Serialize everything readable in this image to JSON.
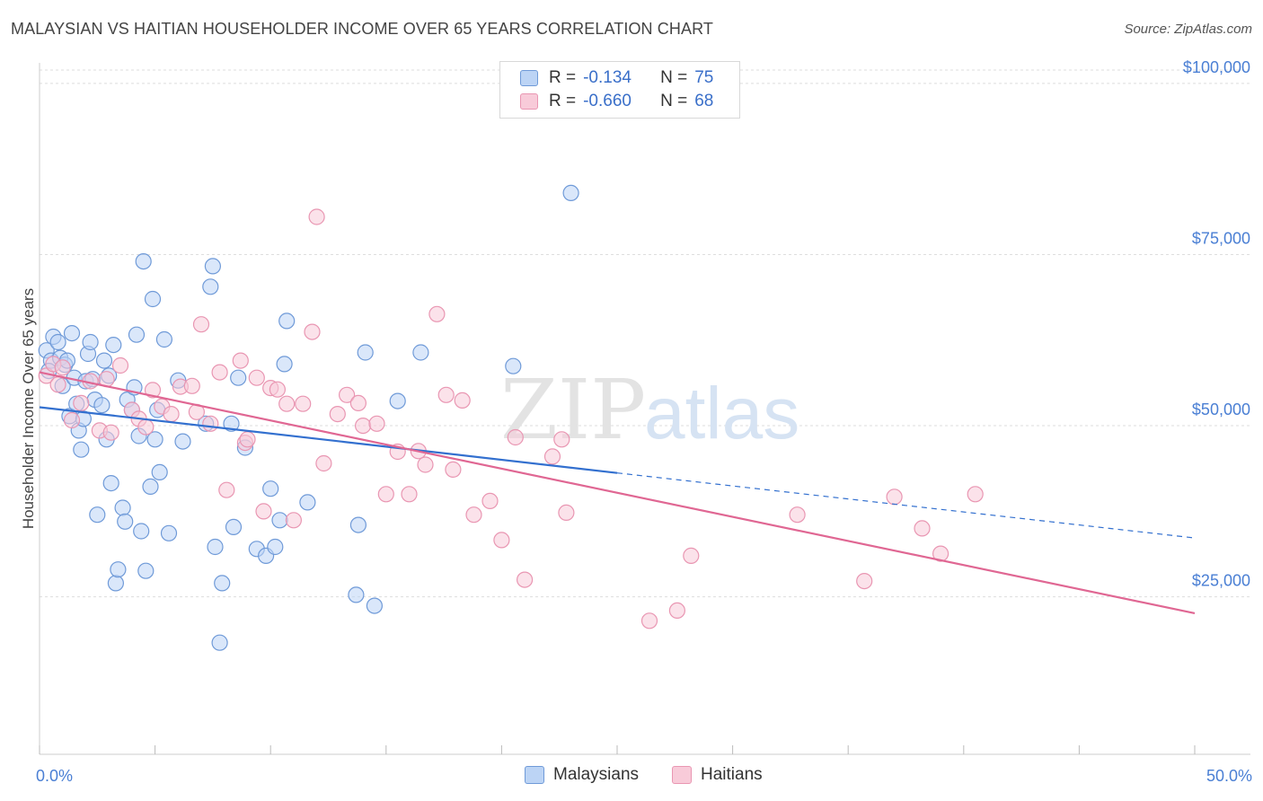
{
  "title": "MALAYSIAN VS HAITIAN HOUSEHOLDER INCOME OVER 65 YEARS CORRELATION CHART",
  "source": "Source: ZipAtlas.com",
  "watermark": {
    "part1": "ZIP",
    "part2": "atlas"
  },
  "legend": {
    "rows": [
      {
        "r_label": "R =",
        "r_value": "-0.134",
        "n_label": "N =",
        "n_value": "75"
      },
      {
        "r_label": "R =",
        "r_value": "-0.660",
        "n_label": "N =",
        "n_value": "68"
      }
    ]
  },
  "colors": {
    "malaysians_fill": "#bcd4f5",
    "malaysians_stroke": "#6f9ad8",
    "malaysians_line": "#3370cf",
    "haitians_fill": "#f8cbd9",
    "haitians_stroke": "#e996b2",
    "haitians_line": "#e06793",
    "axis_label": "#4a7fd4"
  },
  "chart_data": {
    "type": "scatter",
    "title": "MALAYSIAN VS HAITIAN HOUSEHOLDER INCOME OVER 65 YEARS CORRELATION CHART",
    "xlabel": "",
    "ylabel": "Householder Income Over 65 years",
    "xlim": [
      0,
      50
    ],
    "ylim": [
      2000,
      103000
    ],
    "x_tick_labels": [
      "0.0%",
      "50.0%"
    ],
    "y_ticks": [
      {
        "value": 25000,
        "label": "$25,000"
      },
      {
        "value": 50000,
        "label": "$50,000"
      },
      {
        "value": 75000,
        "label": "$75,000"
      },
      {
        "value": 100000,
        "label": "$100,000"
      }
    ],
    "grid": true,
    "series": [
      {
        "name": "Malaysians",
        "r": -0.134,
        "n": 75,
        "trend": {
          "x0": 0,
          "y0": 52700,
          "x1": 25,
          "y1": 43100,
          "dash_x1": 50,
          "dash_y1": 33600
        },
        "points": [
          [
            0.3,
            61.0
          ],
          [
            0.5,
            59.5
          ],
          [
            0.4,
            58.0
          ],
          [
            0.6,
            63.0
          ],
          [
            0.8,
            62.2
          ],
          [
            0.9,
            59.9
          ],
          [
            1.0,
            55.8
          ],
          [
            1.1,
            58.9
          ],
          [
            1.2,
            59.5
          ],
          [
            1.3,
            51.4
          ],
          [
            1.4,
            63.5
          ],
          [
            1.5,
            57.0
          ],
          [
            1.6,
            53.2
          ],
          [
            1.7,
            49.3
          ],
          [
            1.9,
            51.0
          ],
          [
            2.0,
            56.5
          ],
          [
            2.1,
            60.5
          ],
          [
            2.2,
            62.2
          ],
          [
            2.3,
            56.8
          ],
          [
            2.4,
            53.8
          ],
          [
            2.5,
            37.0
          ],
          [
            2.7,
            53.0
          ],
          [
            2.8,
            59.5
          ],
          [
            2.9,
            48.0
          ],
          [
            3.0,
            57.3
          ],
          [
            3.1,
            41.6
          ],
          [
            3.2,
            61.8
          ],
          [
            3.3,
            27.0
          ],
          [
            3.4,
            29.0
          ],
          [
            3.6,
            38.0
          ],
          [
            3.7,
            36.0
          ],
          [
            3.8,
            53.8
          ],
          [
            4.0,
            52.3
          ],
          [
            4.1,
            55.6
          ],
          [
            4.2,
            63.3
          ],
          [
            4.4,
            34.6
          ],
          [
            4.5,
            74.0
          ],
          [
            4.6,
            28.8
          ],
          [
            4.8,
            41.1
          ],
          [
            4.9,
            68.5
          ],
          [
            5.0,
            48.0
          ],
          [
            5.1,
            52.3
          ],
          [
            5.2,
            43.2
          ],
          [
            5.4,
            62.6
          ],
          [
            5.6,
            34.3
          ],
          [
            6.0,
            56.6
          ],
          [
            6.2,
            47.7
          ],
          [
            7.2,
            50.3
          ],
          [
            7.4,
            70.3
          ],
          [
            7.5,
            73.3
          ],
          [
            7.6,
            32.3
          ],
          [
            7.8,
            18.3
          ],
          [
            7.9,
            27.0
          ],
          [
            8.3,
            50.3
          ],
          [
            8.4,
            35.2
          ],
          [
            8.6,
            57.0
          ],
          [
            8.9,
            46.8
          ],
          [
            9.4,
            32.0
          ],
          [
            9.8,
            31.0
          ],
          [
            10.0,
            40.8
          ],
          [
            10.2,
            32.3
          ],
          [
            10.4,
            36.2
          ],
          [
            10.6,
            59.0
          ],
          [
            10.7,
            65.3
          ],
          [
            11.6,
            38.8
          ],
          [
            13.7,
            25.3
          ],
          [
            13.8,
            35.5
          ],
          [
            14.1,
            60.7
          ],
          [
            14.5,
            23.7
          ],
          [
            15.5,
            53.6
          ],
          [
            16.5,
            60.7
          ],
          [
            20.5,
            58.7
          ],
          [
            23.0,
            84.0
          ],
          [
            4.3,
            48.5
          ],
          [
            1.8,
            46.5
          ]
        ]
      },
      {
        "name": "Haitians",
        "r": -0.66,
        "n": 68,
        "trend": {
          "x0": 0,
          "y0": 57800,
          "x1": 50,
          "y1": 22600
        },
        "points": [
          [
            0.3,
            57.3
          ],
          [
            0.6,
            59.0
          ],
          [
            0.8,
            56.0
          ],
          [
            1.0,
            58.5
          ],
          [
            1.4,
            50.8
          ],
          [
            1.8,
            53.3
          ],
          [
            2.2,
            56.5
          ],
          [
            2.6,
            49.3
          ],
          [
            2.9,
            56.8
          ],
          [
            3.1,
            49.0
          ],
          [
            3.5,
            58.8
          ],
          [
            4.0,
            52.3
          ],
          [
            4.3,
            51.0
          ],
          [
            4.6,
            49.8
          ],
          [
            4.9,
            55.2
          ],
          [
            5.3,
            52.8
          ],
          [
            5.7,
            51.7
          ],
          [
            6.1,
            55.7
          ],
          [
            6.6,
            55.8
          ],
          [
            7.0,
            64.8
          ],
          [
            7.4,
            50.3
          ],
          [
            7.8,
            57.8
          ],
          [
            8.1,
            40.6
          ],
          [
            8.7,
            59.5
          ],
          [
            8.9,
            47.5
          ],
          [
            9.4,
            57.0
          ],
          [
            9.7,
            37.5
          ],
          [
            10.0,
            55.5
          ],
          [
            10.3,
            55.3
          ],
          [
            10.7,
            53.2
          ],
          [
            11.0,
            36.2
          ],
          [
            11.4,
            53.2
          ],
          [
            11.8,
            63.7
          ],
          [
            12.0,
            80.5
          ],
          [
            12.3,
            44.5
          ],
          [
            12.9,
            51.7
          ],
          [
            13.3,
            54.5
          ],
          [
            13.8,
            53.3
          ],
          [
            14.0,
            50.0
          ],
          [
            14.6,
            50.3
          ],
          [
            15.0,
            40.0
          ],
          [
            15.5,
            46.2
          ],
          [
            16.0,
            40.0
          ],
          [
            16.4,
            46.3
          ],
          [
            16.7,
            44.3
          ],
          [
            17.2,
            66.3
          ],
          [
            17.6,
            54.5
          ],
          [
            17.9,
            43.6
          ],
          [
            18.3,
            53.7
          ],
          [
            18.8,
            37.0
          ],
          [
            19.5,
            39.0
          ],
          [
            20.0,
            33.3
          ],
          [
            20.6,
            48.3
          ],
          [
            21.0,
            27.5
          ],
          [
            22.2,
            45.5
          ],
          [
            22.6,
            48.0
          ],
          [
            22.8,
            37.3
          ],
          [
            26.4,
            21.5
          ],
          [
            27.6,
            23.0
          ],
          [
            28.2,
            31.0
          ],
          [
            32.8,
            37.0
          ],
          [
            35.7,
            27.3
          ],
          [
            37.0,
            39.6
          ],
          [
            38.2,
            35.0
          ],
          [
            39.0,
            31.3
          ],
          [
            40.5,
            40.0
          ],
          [
            6.8,
            52.0
          ],
          [
            9.0,
            48.0
          ]
        ]
      }
    ],
    "bottom_legend": [
      "Malaysians",
      "Haitians"
    ]
  }
}
